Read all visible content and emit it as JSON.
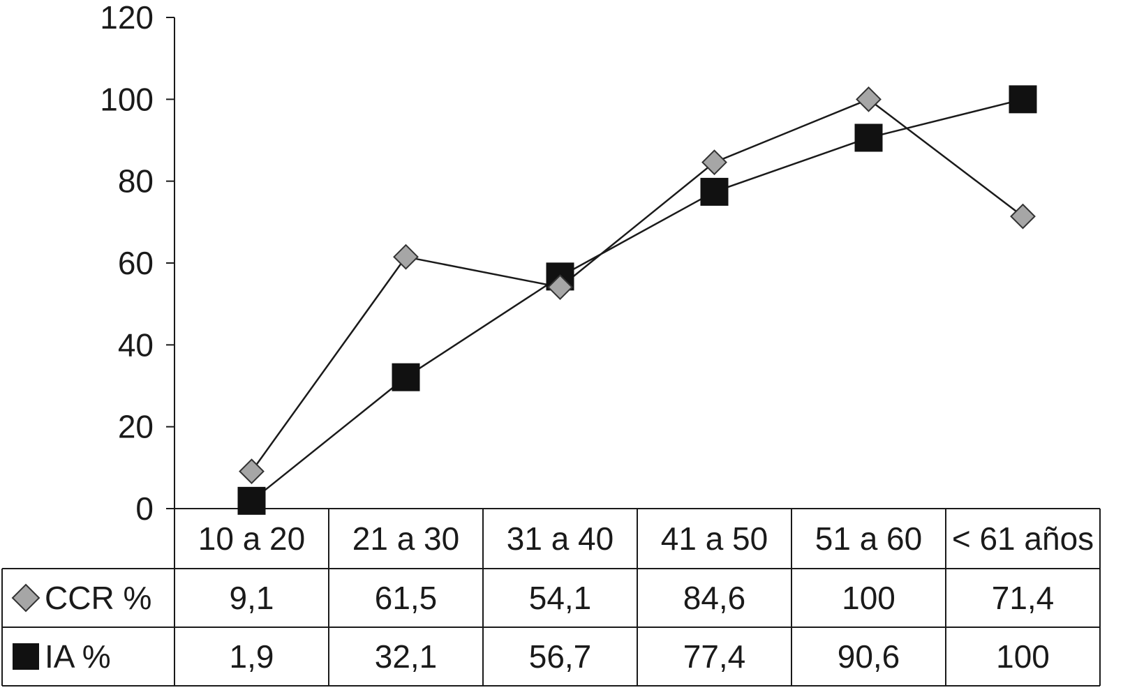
{
  "chart_data": {
    "type": "line",
    "title": "",
    "xlabel": "",
    "ylabel": "",
    "categories": [
      "10 a 20",
      "21 a 30",
      "31 a 40",
      "41 a 50",
      "51 a 60",
      "< 61 años"
    ],
    "ylim": [
      0,
      120
    ],
    "yticks": [
      0,
      20,
      40,
      60,
      80,
      100,
      120
    ],
    "grid": false,
    "legend": "data-table-rows",
    "series": [
      {
        "name": "CCR %",
        "marker": "diamond",
        "color": "#a6a6a6",
        "values": [
          9.1,
          61.5,
          54.1,
          84.6,
          100,
          71.4
        ],
        "labels": [
          "9,1",
          "61,5",
          "54,1",
          "84,6",
          "100",
          "71,4"
        ]
      },
      {
        "name": "IA %",
        "marker": "square",
        "color": "#111111",
        "values": [
          1.9,
          32.1,
          56.7,
          77.4,
          90.6,
          100
        ],
        "labels": [
          "1,9",
          "32,1",
          "56,7",
          "77,4",
          "90,6",
          "100"
        ]
      }
    ]
  }
}
